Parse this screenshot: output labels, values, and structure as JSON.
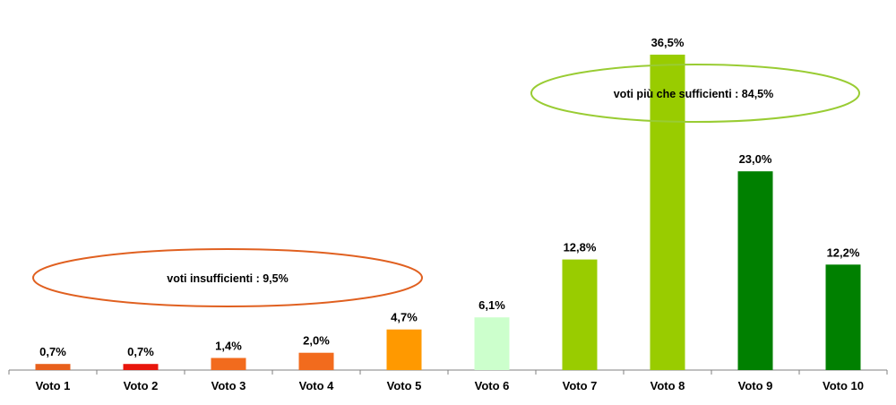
{
  "chart_data": {
    "type": "bar",
    "categories": [
      "Voto 1",
      "Voto 2",
      "Voto 3",
      "Voto 4",
      "Voto 5",
      "Voto 6",
      "Voto 7",
      "Voto 8",
      "Voto 9",
      "Voto 10"
    ],
    "values": [
      0.7,
      0.7,
      1.4,
      2.0,
      4.7,
      6.1,
      12.8,
      36.5,
      23.0,
      12.2
    ],
    "value_labels": [
      "0,7%",
      "0,7%",
      "1,4%",
      "2,0%",
      "4,7%",
      "6,1%",
      "12,8%",
      "36,5%",
      "23,0%",
      "12,2%"
    ],
    "colors": [
      "#E8601C",
      "#E8160C",
      "#F26B1D",
      "#F26B1D",
      "#FF9900",
      "#CCFFCC",
      "#99CC00",
      "#99CC00",
      "#008000",
      "#008000"
    ],
    "ylim": [
      0,
      36.5
    ],
    "grid": false,
    "annotations": [
      {
        "text": "voti insufficienti  : 9,5%",
        "color": "#E06020"
      },
      {
        "text": "voti più che sufficienti  : 84,5%",
        "color": "#99CC33"
      }
    ]
  }
}
